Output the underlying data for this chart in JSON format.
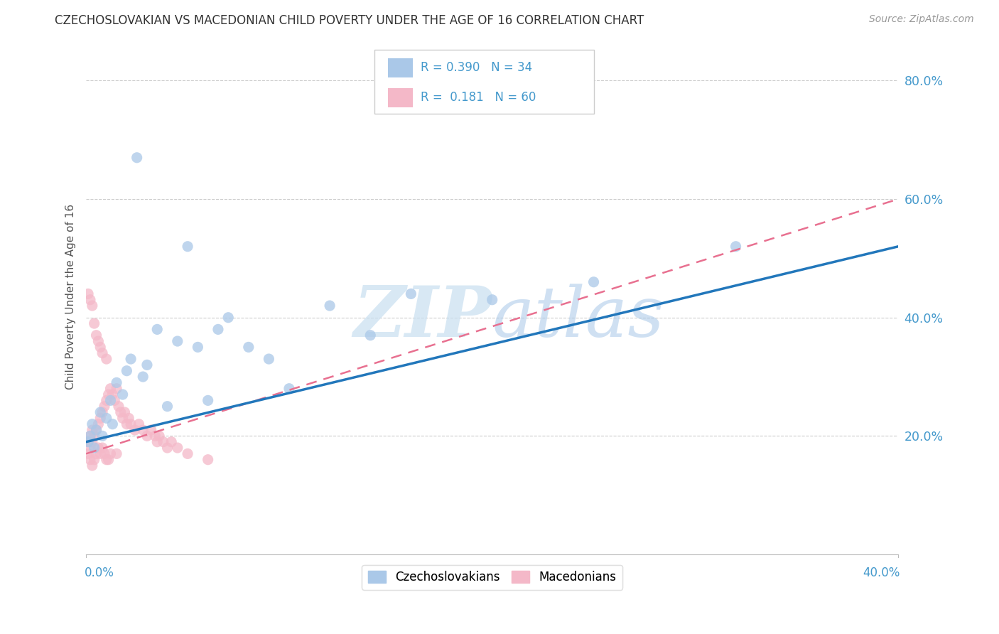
{
  "title": "CZECHOSLOVAKIAN VS MACEDONIAN CHILD POVERTY UNDER THE AGE OF 16 CORRELATION CHART",
  "source": "Source: ZipAtlas.com",
  "ylabel": "Child Poverty Under the Age of 16",
  "xlim": [
    0,
    0.4
  ],
  "ylim": [
    0,
    0.87
  ],
  "yticks": [
    0.2,
    0.4,
    0.6,
    0.8
  ],
  "ytick_labels": [
    "20.0%",
    "40.0%",
    "60.0%",
    "80.0%"
  ],
  "czech_color": "#aac8e8",
  "mac_color": "#f4b8c8",
  "czech_line_color": "#2277bb",
  "mac_line_color": "#e87090",
  "watermark_color": "#d0e4f4",
  "background_color": "#ffffff",
  "grid_color": "#cccccc",
  "tick_color": "#4499cc",
  "title_color": "#333333",
  "source_color": "#999999",
  "czech_x": [
    0.001,
    0.002,
    0.003,
    0.004,
    0.005,
    0.007,
    0.008,
    0.01,
    0.012,
    0.013,
    0.015,
    0.018,
    0.02,
    0.022,
    0.025,
    0.028,
    0.03,
    0.035,
    0.04,
    0.045,
    0.05,
    0.055,
    0.06,
    0.065,
    0.07,
    0.08,
    0.09,
    0.1,
    0.12,
    0.14,
    0.16,
    0.2,
    0.25,
    0.32
  ],
  "czech_y": [
    0.19,
    0.2,
    0.22,
    0.18,
    0.21,
    0.24,
    0.2,
    0.23,
    0.26,
    0.22,
    0.29,
    0.27,
    0.31,
    0.33,
    0.67,
    0.3,
    0.32,
    0.38,
    0.25,
    0.36,
    0.52,
    0.35,
    0.26,
    0.38,
    0.4,
    0.35,
    0.33,
    0.28,
    0.42,
    0.37,
    0.44,
    0.43,
    0.46,
    0.52
  ],
  "mac_x": [
    0.001,
    0.001,
    0.001,
    0.002,
    0.002,
    0.002,
    0.002,
    0.003,
    0.003,
    0.003,
    0.003,
    0.004,
    0.004,
    0.004,
    0.005,
    0.005,
    0.005,
    0.006,
    0.006,
    0.006,
    0.007,
    0.007,
    0.007,
    0.008,
    0.008,
    0.008,
    0.009,
    0.009,
    0.01,
    0.01,
    0.01,
    0.011,
    0.011,
    0.012,
    0.012,
    0.013,
    0.014,
    0.015,
    0.015,
    0.016,
    0.017,
    0.018,
    0.019,
    0.02,
    0.021,
    0.022,
    0.024,
    0.026,
    0.028,
    0.03,
    0.032,
    0.034,
    0.035,
    0.036,
    0.038,
    0.04,
    0.042,
    0.045,
    0.05,
    0.06
  ],
  "mac_y": [
    0.17,
    0.19,
    0.44,
    0.18,
    0.2,
    0.43,
    0.16,
    0.19,
    0.21,
    0.42,
    0.15,
    0.2,
    0.39,
    0.16,
    0.21,
    0.37,
    0.17,
    0.22,
    0.36,
    0.18,
    0.23,
    0.35,
    0.17,
    0.24,
    0.34,
    0.18,
    0.25,
    0.17,
    0.26,
    0.33,
    0.16,
    0.27,
    0.16,
    0.28,
    0.17,
    0.27,
    0.26,
    0.28,
    0.17,
    0.25,
    0.24,
    0.23,
    0.24,
    0.22,
    0.23,
    0.22,
    0.21,
    0.22,
    0.21,
    0.2,
    0.21,
    0.2,
    0.19,
    0.2,
    0.19,
    0.18,
    0.19,
    0.18,
    0.17,
    0.16
  ],
  "czech_trend_x0": 0.0,
  "czech_trend_y0": 0.19,
  "czech_trend_x1": 0.4,
  "czech_trend_y1": 0.52,
  "mac_trend_x0": 0.0,
  "mac_trend_y0": 0.17,
  "mac_trend_x1": 0.4,
  "mac_trend_y1": 0.6
}
